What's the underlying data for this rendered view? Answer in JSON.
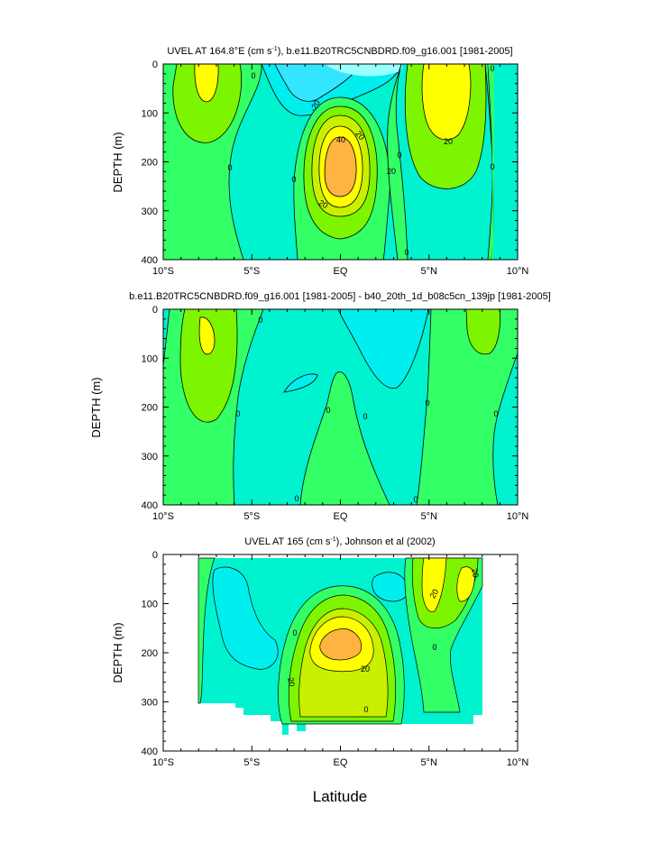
{
  "figure": {
    "xlabel": "Latitude",
    "ylabel": "DEPTH (m)"
  },
  "colors": {
    "cyan_light": "#33e5ff",
    "cyan": "#00eeee",
    "aqua": "#00f2cf",
    "green_light": "#33ff66",
    "green": "#7ef500",
    "yellow_green": "#c8f000",
    "yellow": "#ffff00",
    "orange": "#ffb340",
    "orange_light": "#ffb340"
  },
  "chart_data": [
    {
      "type": "contour",
      "title": "UVEL AT 164.8°E (cm s⁻¹), b.e11.B20TRC5CNBDRD.f09_g16.001 [1981-2005]",
      "title_main": "UVEL AT 164.8°E (cm s",
      "title_sup": "-1",
      "title_rest": "), b.e11.B20TRC5CNBDRD.f09_g16.001 [1981-2005]",
      "xlim": [
        -10,
        10
      ],
      "ylim": [
        400,
        0
      ],
      "x_ticks": [
        "10°S",
        "5°S",
        "EQ",
        "5°N",
        "10°N"
      ],
      "x_tick_values": [
        -10,
        -5,
        0,
        5,
        10
      ],
      "y_ticks": [
        "0",
        "100",
        "200",
        "300",
        "400"
      ],
      "y_tick_values": [
        0,
        100,
        200,
        300,
        400
      ],
      "contour_labels": [
        "-20",
        "0",
        "20",
        "40",
        "20",
        "20",
        "0",
        "0",
        "20",
        "0",
        "0",
        "0",
        "0"
      ],
      "features": [
        {
          "name": "equatorial undercurrent core",
          "lat": 0,
          "depth": 190,
          "max": "> 40"
        },
        {
          "name": "NECC core",
          "lat": 5.5,
          "depth": 60,
          "max": "> 20"
        },
        {
          "name": "SECC core",
          "lat": -8,
          "depth": 40,
          "max": "> 20"
        },
        {
          "name": "surface westward SEC",
          "lat": -1.5,
          "depth": 30,
          "min": "< -20"
        }
      ]
    },
    {
      "type": "contour",
      "title": "b.e11.B20TRC5CNBDRD.f09_g16.001 [1981-2005] - b40_20th_1d_b08c5cn_139jp [1981-2005]",
      "xlim": [
        -10,
        10
      ],
      "ylim": [
        400,
        0
      ],
      "x_ticks": [
        "10°S",
        "5°S",
        "EQ",
        "5°N",
        "10°N"
      ],
      "x_tick_values": [
        -10,
        -5,
        0,
        5,
        10
      ],
      "y_ticks": [
        "0",
        "100",
        "200",
        "300",
        "400"
      ],
      "y_tick_values": [
        0,
        100,
        200,
        300,
        400
      ],
      "contour_labels": [
        "0",
        "0",
        "0",
        "0",
        "0",
        "0",
        "0",
        "0"
      ]
    },
    {
      "type": "contour",
      "title": "UVEL AT 165 (cm s⁻¹), Johnson et al (2002)",
      "title_main": "UVEL AT 165 (cm s",
      "title_sup": "-1",
      "title_rest": "), Johnson et al (2002)",
      "xlim": [
        -10,
        10
      ],
      "ylim": [
        400,
        0
      ],
      "x_ticks": [
        "10°S",
        "5°S",
        "EQ",
        "5°N",
        "10°N"
      ],
      "x_tick_values": [
        -10,
        -5,
        0,
        5,
        10
      ],
      "y_ticks": [
        "0",
        "100",
        "200",
        "300",
        "400"
      ],
      "y_tick_values": [
        0,
        100,
        200,
        300,
        400
      ],
      "data_coverage": {
        "lat_range": [
          -8,
          8
        ],
        "depth_range": [
          0,
          350
        ]
      },
      "contour_labels": [
        "20",
        "20",
        "20",
        "20",
        "0",
        "0",
        "0"
      ],
      "features": [
        {
          "name": "equatorial undercurrent core",
          "lat": 0,
          "depth": 190,
          "max": "> 40"
        },
        {
          "name": "NECC core",
          "lat": 5.2,
          "depth": 40,
          "max": "> 20"
        }
      ]
    }
  ]
}
